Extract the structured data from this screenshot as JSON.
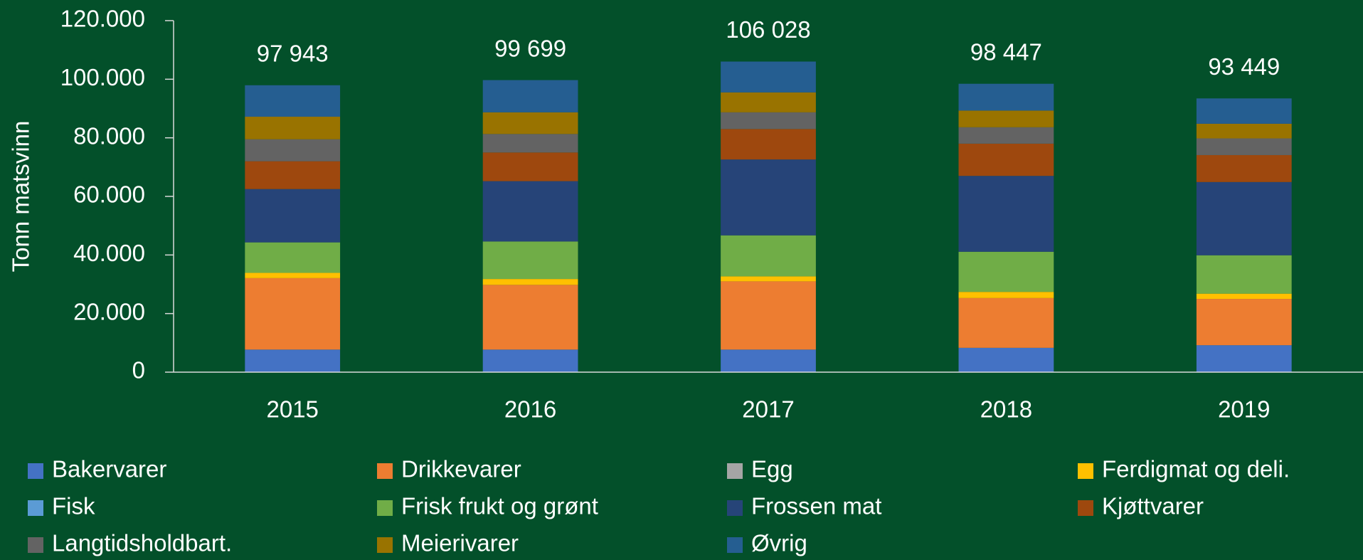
{
  "chart_data": {
    "type": "stacked_bar",
    "y_label": "Tonn matsvinn",
    "categories": [
      "2015",
      "2016",
      "2017",
      "2018",
      "2019"
    ],
    "series": [
      {
        "name": "Bakervarer",
        "color": "#4472c4",
        "values": [
          7700,
          7700,
          7700,
          8300,
          9200
        ]
      },
      {
        "name": "Drikkevarer",
        "color": "#ed7d31",
        "values": [
          24400,
          22100,
          23300,
          17000,
          15800
        ]
      },
      {
        "name": "Egg",
        "color": "#a5a5a5",
        "values": [
          0,
          0,
          0,
          0,
          0
        ]
      },
      {
        "name": "Ferdigmat og deli.",
        "color": "#ffc000",
        "values": [
          1800,
          2000,
          1700,
          2100,
          1800
        ]
      },
      {
        "name": "Fisk",
        "color": "#5b9bd5",
        "values": [
          0,
          0,
          0,
          0,
          0
        ]
      },
      {
        "name": "Frisk frukt og grønt",
        "color": "#70ad47",
        "values": [
          10400,
          12800,
          14000,
          13700,
          13100
        ]
      },
      {
        "name": "Frossen mat",
        "color": "#264478",
        "values": [
          18200,
          20600,
          25900,
          25900,
          25000
        ]
      },
      {
        "name": "Kjøttvarer",
        "color": "#9e480e",
        "values": [
          9500,
          9800,
          10400,
          11000,
          9200
        ]
      },
      {
        "name": "Langtidsholdbart.",
        "color": "#636363",
        "values": [
          7500,
          6300,
          5700,
          5600,
          5700
        ]
      },
      {
        "name": "Meierivarer",
        "color": "#997300",
        "values": [
          7700,
          7400,
          6800,
          5700,
          5000
        ]
      },
      {
        "name": "Øvrig",
        "color": "#255e91",
        "values": [
          10743,
          10999,
          10528,
          9147,
          8649
        ]
      }
    ],
    "totals": {
      "values": [
        97943,
        99699,
        106028,
        98447,
        93449
      ],
      "value_labels": [
        "97 943",
        "99 699",
        "106 028",
        "98 447",
        "93 449"
      ]
    },
    "ylim": [
      0,
      120000
    ],
    "yticks": [
      0,
      {
        "value": 20000,
        "label": "20.000"
      },
      {
        "value": 40000,
        "label": "40.000"
      },
      {
        "value": 60000,
        "label": "60.000"
      },
      {
        "value": 80000,
        "label": "80.000"
      },
      {
        "value": 100000,
        "label": "100.000"
      },
      {
        "value": 120000,
        "label": "120.000"
      }
    ],
    "legend": "bottom"
  }
}
